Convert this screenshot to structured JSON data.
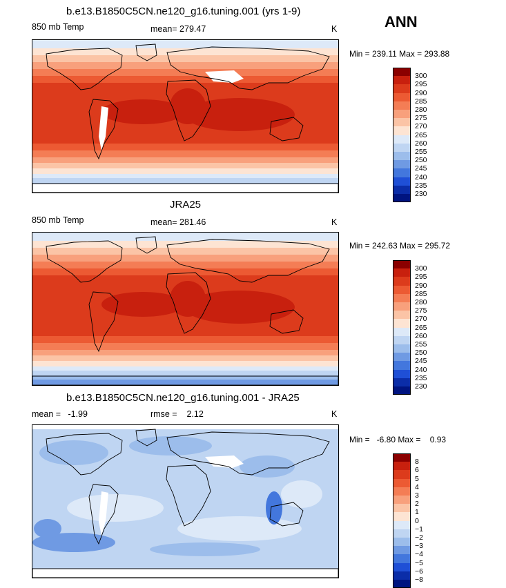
{
  "header": {
    "season": "ANN"
  },
  "panels": [
    {
      "id": "model",
      "title": "b.e13.B1850C5CN.ne120_g16.tuning.001 (yrs 1-9)",
      "left_label": "850 mb Temp",
      "center_label": "mean= 279.47",
      "unit": "K",
      "minmax": "Min = 239.11 Max = 293.88",
      "tint": "model"
    },
    {
      "id": "obs",
      "title": "JRA25",
      "left_label": "850 mb Temp",
      "center_label": "mean= 281.46",
      "unit": "K",
      "minmax": "Min = 242.63 Max = 295.72",
      "tint": "obs"
    },
    {
      "id": "diff",
      "title": "b.e13.B1850C5CN.ne120_g16.tuning.001 - JRA25",
      "left_label": "mean =   -1.99",
      "center_label": "rmse =    2.12",
      "unit": "K",
      "minmax": "Min =   -6.80 Max =    0.93",
      "tint": "diff"
    }
  ],
  "colorbars": {
    "temperature": {
      "labels": [
        "300",
        "295",
        "290",
        "285",
        "280",
        "275",
        "270",
        "265",
        "260",
        "255",
        "250",
        "245",
        "240",
        "235",
        "230"
      ],
      "colors": [
        "#8b0000",
        "#c8200e",
        "#dc3b1c",
        "#ec5a33",
        "#f47d55",
        "#f8a07c",
        "#fbc4a6",
        "#fde4d3",
        "#dde9f8",
        "#bfd5f2",
        "#9cbdeb",
        "#6f9ae3",
        "#4377dd",
        "#1f4fd6",
        "#0b2da8",
        "#001480"
      ]
    },
    "difference": {
      "labels": [
        "8",
        "6",
        "5",
        "4",
        "3",
        "2",
        "1",
        "0",
        "−1",
        "−2",
        "−3",
        "−4",
        "−5",
        "−6",
        "−8"
      ],
      "colors": [
        "#8b0000",
        "#c8200e",
        "#dc3b1c",
        "#ec5a33",
        "#f47d55",
        "#f8a07c",
        "#fbc4a6",
        "#fde4d3",
        "#dde9f8",
        "#bfd5f2",
        "#9cbdeb",
        "#6f9ae3",
        "#4377dd",
        "#1f4fd6",
        "#0b2da8",
        "#001480"
      ]
    }
  }
}
